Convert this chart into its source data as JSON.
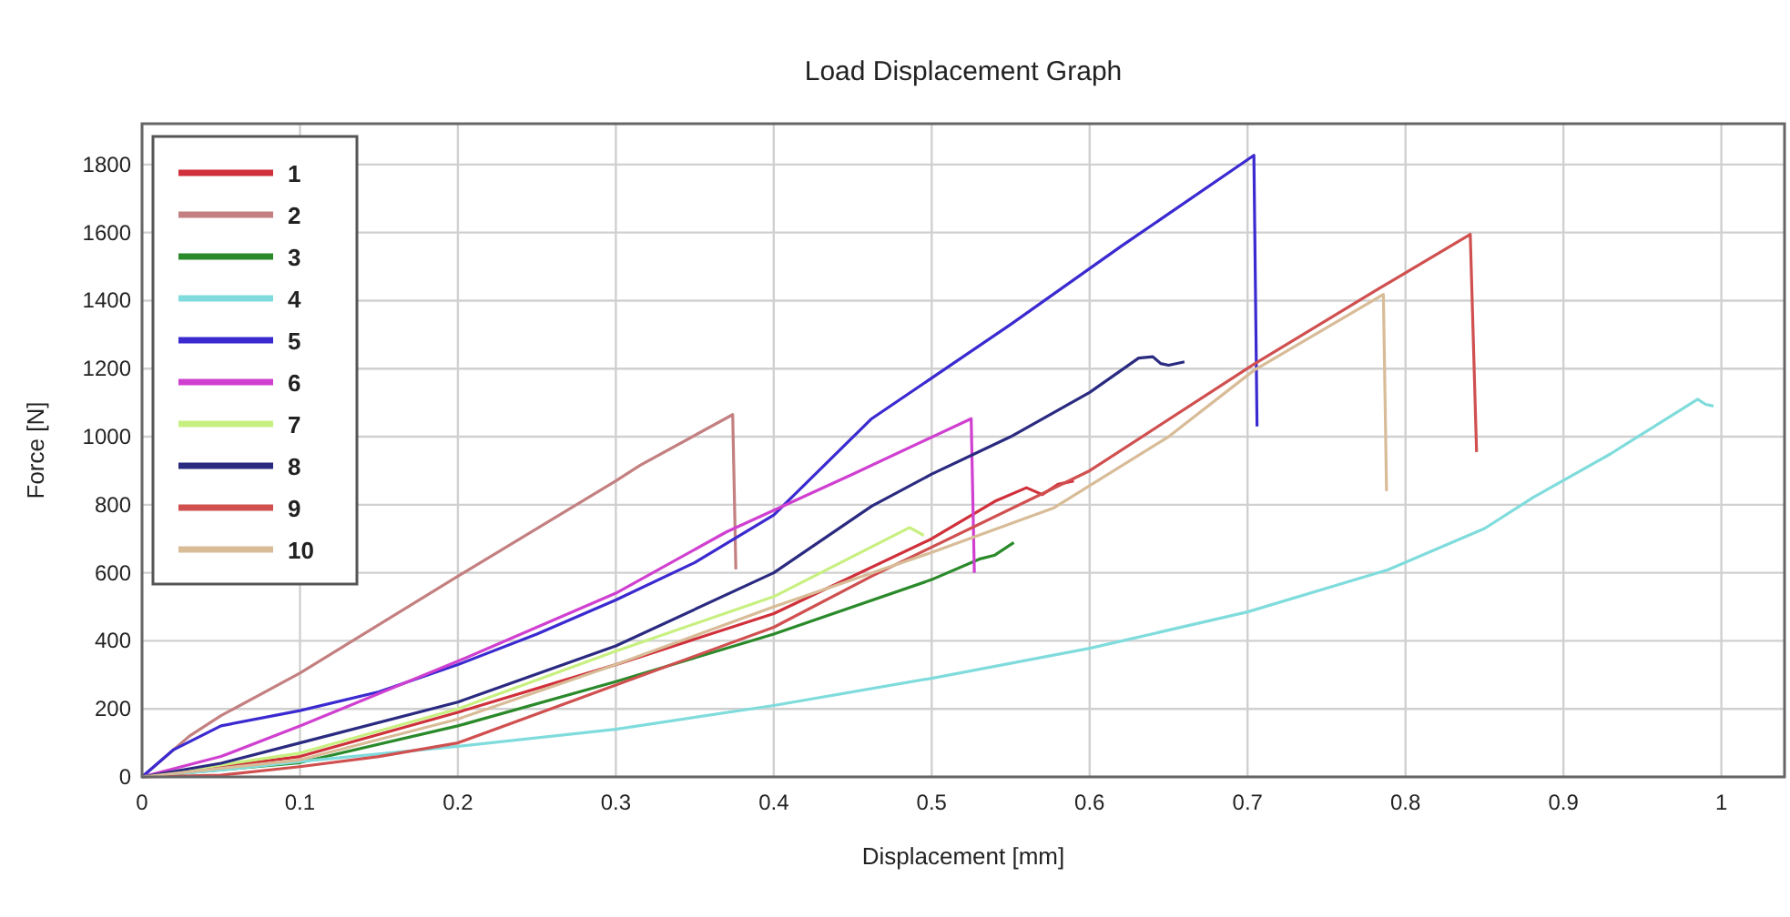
{
  "chart_data": {
    "type": "line",
    "title": "Load Displacement Graph",
    "xlabel": "Displacement [mm]",
    "ylabel": "Force [N]",
    "xlim": [
      0,
      1.04
    ],
    "xticks": [
      0,
      0.1,
      0.2,
      0.3,
      0.4,
      0.5,
      0.6,
      0.7,
      0.8,
      0.9,
      1
    ],
    "ylim": [
      0,
      1920
    ],
    "yticks": [
      0,
      200,
      400,
      600,
      800,
      1000,
      1200,
      1400,
      1600,
      1800
    ],
    "grid": true,
    "legend": "top left",
    "marker": "none",
    "line_style": "solid",
    "series": [
      {
        "name": "1",
        "color": "#d0303a",
        "x": [
          0,
          0.1,
          0.2,
          0.3,
          0.4,
          0.5,
          0.54,
          0.56,
          0.57,
          0.58,
          0.59
        ],
        "values": [
          0,
          60,
          190,
          330,
          480,
          700,
          810,
          850,
          830,
          860,
          870
        ]
      },
      {
        "name": "2",
        "color": "#c48080",
        "x": [
          0,
          0.03,
          0.05,
          0.1,
          0.2,
          0.3,
          0.315,
          0.374,
          0.376
        ],
        "values": [
          0,
          120,
          180,
          305,
          590,
          870,
          915,
          1065,
          610
        ]
      },
      {
        "name": "3",
        "color": "#2a8a2a",
        "x": [
          0,
          0.1,
          0.2,
          0.3,
          0.4,
          0.5,
          0.53,
          0.54,
          0.552
        ],
        "values": [
          0,
          42,
          150,
          280,
          420,
          580,
          640,
          652,
          689
        ]
      },
      {
        "name": "4",
        "color": "#80dcdc",
        "x": [
          0,
          0.05,
          0.1,
          0.2,
          0.3,
          0.4,
          0.5,
          0.6,
          0.7,
          0.789,
          0.85,
          0.881,
          0.93,
          0.985,
          0.99,
          0.995
        ],
        "values": [
          0,
          20,
          45,
          90,
          140,
          210,
          290,
          378,
          485,
          609,
          730,
          822,
          950,
          1110,
          1095,
          1090
        ]
      },
      {
        "name": "5",
        "color": "#3a2ad0",
        "x": [
          0,
          0.02,
          0.05,
          0.1,
          0.15,
          0.2,
          0.25,
          0.3,
          0.35,
          0.4,
          0.462,
          0.55,
          0.62,
          0.704,
          0.706
        ],
        "values": [
          0,
          80,
          150,
          195,
          250,
          330,
          420,
          520,
          630,
          770,
          1053,
          1330,
          1560,
          1827,
          1030
        ]
      },
      {
        "name": "6",
        "color": "#d040d0",
        "x": [
          0,
          0.05,
          0.1,
          0.2,
          0.3,
          0.37,
          0.45,
          0.525,
          0.527
        ],
        "values": [
          0,
          60,
          150,
          340,
          540,
          720,
          890,
          1053,
          600
        ]
      },
      {
        "name": "7",
        "color": "#c8f080",
        "x": [
          0,
          0.1,
          0.2,
          0.3,
          0.4,
          0.486,
          0.495
        ],
        "values": [
          0,
          70,
          200,
          370,
          530,
          733,
          710
        ]
      },
      {
        "name": "8",
        "color": "#2a2a80",
        "x": [
          0,
          0.05,
          0.1,
          0.2,
          0.3,
          0.4,
          0.462,
          0.5,
          0.55,
          0.6,
          0.631,
          0.64,
          0.645,
          0.65,
          0.66
        ],
        "values": [
          0,
          40,
          100,
          220,
          385,
          600,
          796,
          890,
          1000,
          1130,
          1231,
          1235,
          1215,
          1210,
          1220
        ]
      },
      {
        "name": "9",
        "color": "#d05050",
        "x": [
          0,
          0.05,
          0.1,
          0.15,
          0.2,
          0.3,
          0.4,
          0.462,
          0.6,
          0.704,
          0.783,
          0.841,
          0.845
        ],
        "values": [
          0,
          5,
          30,
          60,
          100,
          270,
          440,
          590,
          900,
          1213,
          1435,
          1595,
          955
        ]
      },
      {
        "name": "10",
        "color": "#d8bc98",
        "x": [
          0,
          0.1,
          0.2,
          0.3,
          0.4,
          0.5,
          0.577,
          0.65,
          0.704,
          0.786,
          0.788
        ],
        "values": [
          0,
          50,
          170,
          330,
          500,
          660,
          790,
          1000,
          1195,
          1418,
          840
        ]
      }
    ]
  }
}
